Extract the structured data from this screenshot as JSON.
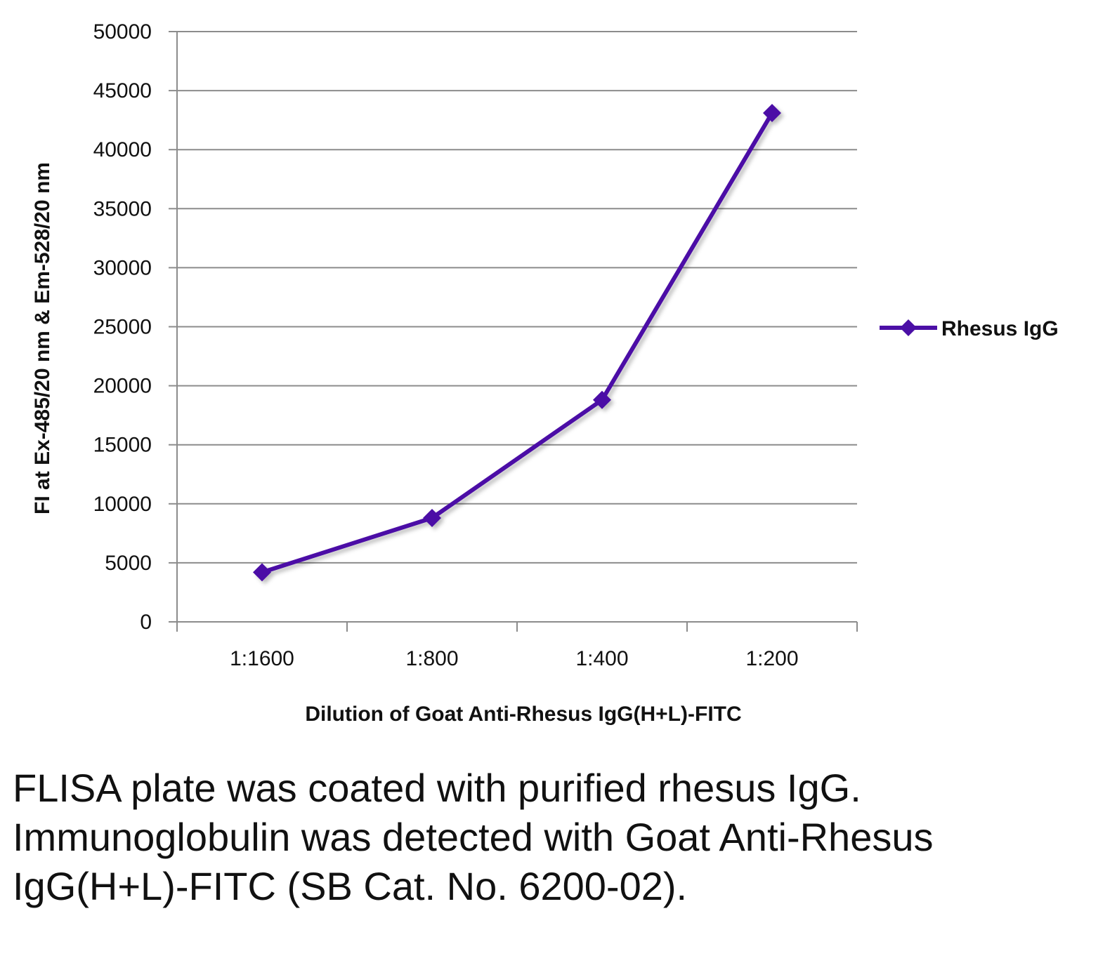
{
  "chart_data": {
    "type": "line",
    "title": "",
    "xlabel": "Dilution of Goat Anti-Rhesus IgG(H+L)-FITC",
    "ylabel": "FI at Ex-485/20 nm & Em-528/20 nm",
    "categories": [
      "1:1600",
      "1:800",
      "1:400",
      "1:200"
    ],
    "series": [
      {
        "name": "Rhesus IgG",
        "color": "#4B0FA6",
        "marker": "diamond",
        "values": [
          4200,
          8800,
          18800,
          43100
        ]
      }
    ],
    "ylim": [
      0,
      50000
    ],
    "yticks": [
      "0",
      "5000",
      "10000",
      "15000",
      "20000",
      "25000",
      "30000",
      "35000",
      "40000",
      "45000",
      "50000"
    ],
    "grid": true,
    "legend": "right"
  },
  "caption": "FLISA plate was coated with purified rhesus IgG.  Immunoglobulin was detected with Goat Anti-Rhesus IgG(H+L)-FITC (SB Cat. No. 6200-02).",
  "colors": {
    "series": "#4B0FA6",
    "grid": "#8c8c8c",
    "axis": "#8c8c8c"
  }
}
